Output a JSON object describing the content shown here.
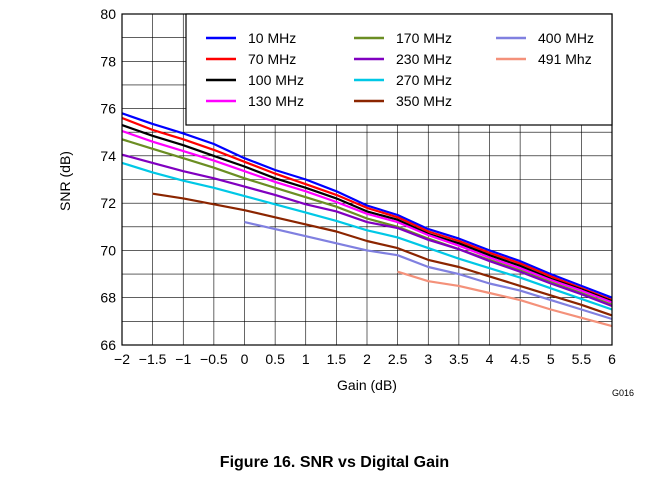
{
  "figure_caption": "Figure 16. SNR vs Digital Gain",
  "figure_id": "G016",
  "chart_data": {
    "type": "line",
    "xlabel": "Gain (dB)",
    "ylabel": "SNR (dB)",
    "xlim": [
      -2,
      6
    ],
    "ylim": [
      66,
      80
    ],
    "xticks": [
      -2,
      -1.5,
      -1,
      -0.5,
      0,
      0.5,
      1,
      1.5,
      2,
      2.5,
      3,
      3.5,
      4,
      4.5,
      5,
      5.5,
      6
    ],
    "xtick_labels": [
      "−2",
      "−1.5",
      "−1",
      "−0.5",
      "0",
      "0.5",
      "1",
      "1.5",
      "2",
      "2.5",
      "3",
      "3.5",
      "4",
      "4.5",
      "5",
      "5.5",
      "6"
    ],
    "yticks": [
      66,
      68,
      70,
      72,
      74,
      76,
      78,
      80
    ],
    "yminor_step": 1,
    "grid": true,
    "legend_position": "top-right",
    "series": [
      {
        "name": "10 MHz",
        "color": "#0000ff",
        "x": [
          -2,
          -1.5,
          -1,
          -0.5,
          0,
          0.5,
          1,
          1.5,
          2,
          2.5,
          3,
          3.5,
          4,
          4.5,
          5,
          5.5,
          6
        ],
        "y": [
          75.8,
          75.35,
          74.95,
          74.5,
          73.9,
          73.4,
          73.0,
          72.5,
          71.9,
          71.5,
          70.9,
          70.5,
          70.0,
          69.55,
          69.0,
          68.5,
          68.0
        ]
      },
      {
        "name": "70 MHz",
        "color": "#ff0000",
        "x": [
          -2,
          -1.5,
          -1,
          -0.5,
          0,
          0.5,
          1,
          1.5,
          2,
          2.5,
          3,
          3.5,
          4,
          4.5,
          5,
          5.5,
          6
        ],
        "y": [
          75.6,
          75.1,
          74.7,
          74.25,
          73.75,
          73.25,
          72.8,
          72.35,
          71.8,
          71.4,
          70.8,
          70.4,
          69.9,
          69.45,
          68.9,
          68.4,
          67.9
        ]
      },
      {
        "name": "100 MHz",
        "color": "#000000",
        "x": [
          -2,
          -1.5,
          -1,
          -0.5,
          0,
          0.5,
          1,
          1.5,
          2,
          2.5,
          3,
          3.5,
          4,
          4.5,
          5,
          5.5,
          6
        ],
        "y": [
          75.3,
          74.85,
          74.45,
          74.0,
          73.55,
          73.05,
          72.65,
          72.2,
          71.65,
          71.3,
          70.7,
          70.3,
          69.8,
          69.35,
          68.8,
          68.35,
          67.85
        ]
      },
      {
        "name": "130 MHz",
        "color": "#ff00ff",
        "x": [
          -2,
          -1.5,
          -1,
          -0.5,
          0,
          0.5,
          1,
          1.5,
          2,
          2.5,
          3,
          3.5,
          4,
          4.5,
          5,
          5.5,
          6
        ],
        "y": [
          75.05,
          74.6,
          74.2,
          73.8,
          73.35,
          72.9,
          72.5,
          72.05,
          71.55,
          71.2,
          70.65,
          70.2,
          69.7,
          69.25,
          68.75,
          68.3,
          67.8
        ]
      },
      {
        "name": "170 MHz",
        "color": "#6b8e23",
        "x": [
          -2,
          -1.5,
          -1,
          -0.5,
          0,
          0.5,
          1,
          1.5,
          2,
          2.5,
          3,
          3.5,
          4,
          4.5,
          5,
          5.5,
          6
        ],
        "y": [
          74.7,
          74.3,
          73.9,
          73.5,
          73.05,
          72.65,
          72.25,
          71.85,
          71.35,
          71.0,
          70.5,
          70.05,
          69.6,
          69.15,
          68.65,
          68.2,
          67.7
        ]
      },
      {
        "name": "230 MHz",
        "color": "#8000c0",
        "x": [
          -2,
          -1.5,
          -1,
          -0.5,
          0,
          0.5,
          1,
          1.5,
          2,
          2.5,
          3,
          3.5,
          4,
          4.5,
          5,
          5.5,
          6
        ],
        "y": [
          74.05,
          73.7,
          73.35,
          73.05,
          72.7,
          72.35,
          71.95,
          71.65,
          71.2,
          70.95,
          70.45,
          70.05,
          69.55,
          69.1,
          68.6,
          68.15,
          67.65
        ]
      },
      {
        "name": "270 MHz",
        "color": "#00c8e6",
        "x": [
          -2,
          -1.5,
          -1,
          -0.5,
          0,
          0.5,
          1,
          1.5,
          2,
          2.5,
          3,
          3.5,
          4,
          4.5,
          5,
          5.5,
          6
        ],
        "y": [
          73.7,
          73.3,
          72.95,
          72.65,
          72.3,
          71.95,
          71.6,
          71.25,
          70.85,
          70.55,
          70.1,
          69.65,
          69.25,
          68.85,
          68.4,
          67.95,
          67.5
        ]
      },
      {
        "name": "350 MHz",
        "color": "#8b2500",
        "x": [
          -1.5,
          -1,
          -0.5,
          0,
          0.5,
          1,
          1.5,
          2,
          2.5,
          3,
          3.5,
          4,
          4.5,
          5,
          5.5,
          6
        ],
        "y": [
          72.4,
          72.2,
          71.95,
          71.7,
          71.4,
          71.1,
          70.8,
          70.4,
          70.1,
          69.6,
          69.3,
          68.9,
          68.5,
          68.1,
          67.7,
          67.25
        ]
      },
      {
        "name": "400 MHz",
        "color": "#8080e0",
        "x": [
          0,
          0.5,
          1,
          1.5,
          2,
          2.5,
          3,
          3.5,
          4,
          4.5,
          5,
          5.5,
          6
        ],
        "y": [
          71.2,
          70.9,
          70.6,
          70.3,
          70.0,
          69.8,
          69.3,
          69.0,
          68.6,
          68.3,
          67.9,
          67.5,
          67.1
        ]
      },
      {
        "name": "491 Mhz",
        "color": "#f4917a",
        "x": [
          2.5,
          3,
          3.5,
          4,
          4.5,
          5,
          5.5,
          6
        ],
        "y": [
          69.1,
          68.7,
          68.5,
          68.2,
          67.9,
          67.5,
          67.15,
          66.8
        ]
      }
    ]
  }
}
